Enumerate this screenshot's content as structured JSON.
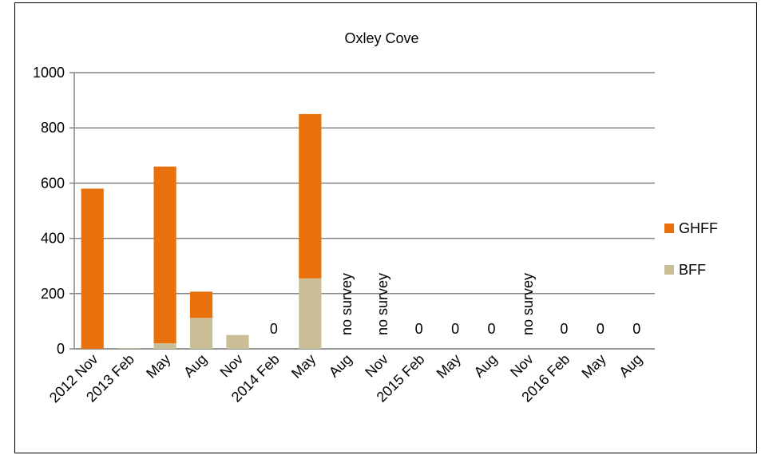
{
  "chart_data": {
    "type": "bar",
    "stacked": true,
    "title": "Oxley Cove",
    "xlabel": "",
    "ylabel": "",
    "ylim": [
      0,
      1000
    ],
    "yticks": [
      0,
      200,
      400,
      600,
      800,
      1000
    ],
    "grid": true,
    "legend_position": "right",
    "categories": [
      "2012 Nov",
      "2013 Feb",
      "May",
      "Aug",
      "Nov",
      "2014 Feb",
      "May",
      "Aug",
      "Nov",
      "2015 Feb",
      "May",
      "Aug",
      "Nov",
      "2016 Feb",
      "May",
      "Aug"
    ],
    "series": [
      {
        "name": "BFF",
        "color": "#C9BE96",
        "values": [
          0,
          2,
          20,
          112,
          50,
          0,
          255,
          0,
          0,
          0,
          0,
          0,
          0,
          0,
          0,
          0
        ]
      },
      {
        "name": "GHFF",
        "color": "#E8700D",
        "values": [
          580,
          0,
          640,
          95,
          0,
          0,
          595,
          0,
          0,
          0,
          0,
          0,
          0,
          0,
          0,
          0
        ]
      }
    ],
    "legend_order": [
      "GHFF",
      "BFF"
    ],
    "annotations": [
      "",
      "",
      "",
      "",
      "",
      "0",
      "",
      "no survey",
      "no survey",
      "0",
      "0",
      "0",
      "no survey",
      "0",
      "0",
      "0"
    ]
  }
}
